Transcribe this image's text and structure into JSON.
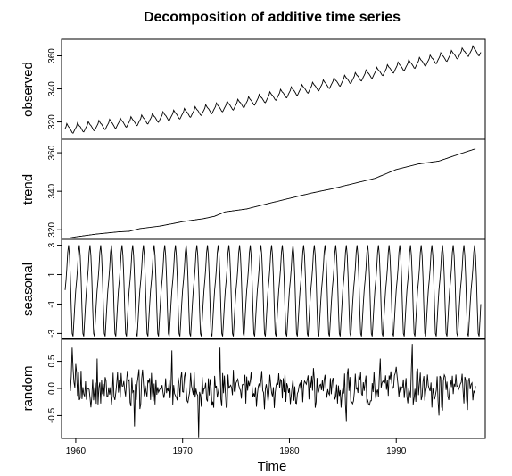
{
  "chart_data": {
    "type": "line",
    "title": "Decomposition of additive time series",
    "xlabel": "Time",
    "x_ticks": [
      "1960",
      "1970",
      "1980",
      "1990"
    ],
    "x_tick_values": [
      1960,
      1970,
      1980,
      1990
    ],
    "xlim": [
      1958.67,
      1998.33
    ],
    "grid": false,
    "panels": [
      {
        "name": "observed",
        "ylabel": "observed",
        "ylim": [
          309.5,
          370.0
        ],
        "y_ticks": [
          "320",
          "340",
          "360"
        ],
        "y_tick_values": [
          320,
          340,
          360
        ],
        "series": [
          {
            "x": [
              1959.5,
              1959.58,
              1959.67,
              1959.75,
              1959.83,
              1959.92,
              1960.0
            ],
            "values": [
              316.0,
              317.5,
              316.2,
              314.0,
              312.6,
              313.5,
              315.0
            ]
          },
          {
            "x": [
              1965.0,
              1965.37,
              1965.67,
              1965.83,
              1966.0
            ],
            "values": [
              320.0,
              322.2,
              319.0,
              316.9,
              319.5
            ]
          },
          {
            "x": [
              1970.0,
              1970.37,
              1970.67,
              1970.83,
              1971.0
            ],
            "values": [
              325.0,
              328.0,
              324.5,
              322.7,
              325.5
            ]
          },
          {
            "x": [
              1975.0,
              1975.37,
              1975.67,
              1975.83,
              1976.0
            ],
            "values": [
              330.5,
              334.0,
              330.0,
              328.0,
              331.0
            ]
          },
          {
            "x": [
              1980.0,
              1980.37,
              1980.67,
              1980.83,
              1981.0
            ],
            "values": [
              338.0,
              341.5,
              337.5,
              335.5,
              339.0
            ]
          },
          {
            "x": [
              1985.0,
              1985.37,
              1985.67,
              1985.83,
              1986.0
            ],
            "values": [
              345.0,
              348.5,
              344.5,
              342.5,
              346.0
            ]
          },
          {
            "x": [
              1990.0,
              1990.37,
              1990.67,
              1990.83,
              1991.0
            ],
            "values": [
              353.0,
              356.5,
              352.5,
              350.5,
              354.0
            ]
          },
          {
            "x": [
              1995.0,
              1995.37,
              1995.67,
              1995.83,
              1996.0
            ],
            "values": [
              360.0,
              363.7,
              359.5,
              357.5,
              361.0
            ]
          },
          {
            "x": [
              1997.0,
              1997.37,
              1997.67,
              1997.83,
              1997.92
            ],
            "values": [
              363.0,
              366.8,
              362.0,
              360.5,
              362.5
            ]
          }
        ]
      },
      {
        "name": "trend",
        "ylabel": "trend",
        "ylim": [
          315.0,
          367.0
        ],
        "y_ticks": [
          "320",
          "340",
          "360"
        ],
        "y_tick_values": [
          320,
          340,
          360
        ],
        "series": [
          {
            "x": [
              1959.5,
              1960,
              1962,
              1964,
              1965,
              1966,
              1968,
              1970,
              1972,
              1973,
              1974,
              1976,
              1978,
              1980,
              1982,
              1984,
              1986,
              1988,
              1990,
              1992,
              1994,
              1996,
              1997.5
            ],
            "values": [
              315.8,
              316.3,
              317.8,
              318.9,
              319.2,
              320.6,
              322.0,
              324.2,
              325.8,
              327.0,
              329.3,
              330.8,
              333.6,
              336.3,
              339.0,
              341.3,
              344.0,
              346.7,
              351.3,
              354.1,
              355.7,
              359.5,
              362.2
            ]
          }
        ]
      },
      {
        "name": "seasonal",
        "ylabel": "seasonal",
        "ylim": [
          -3.4,
          3.4
        ],
        "y_ticks": [
          "-3",
          "-1",
          "1",
          "3"
        ],
        "y_tick_values": [
          -3,
          -1,
          1,
          3
        ],
        "series": [
          {
            "x": [
              1959.0,
              1959.08,
              1959.17,
              1959.25,
              1959.33,
              1959.42,
              1959.5,
              1959.58,
              1959.67,
              1959.75,
              1959.83,
              1959.92
            ],
            "values": [
              -0.05,
              0.6,
              1.4,
              2.5,
              3.0,
              2.3,
              0.8,
              -1.3,
              -3.0,
              -3.2,
              -2.1,
              -1.0
            ]
          }
        ]
      },
      {
        "name": "random",
        "ylabel": "random",
        "ylim": [
          -0.92,
          0.92
        ],
        "y_ticks": [
          "-0.5",
          "0.0",
          "0.5"
        ],
        "y_tick_values": [
          -0.5,
          0.0,
          0.5
        ],
        "series": [
          {
            "x": [
              1959.5,
              1959.67,
              1960,
              1962,
              1965.5,
              1969,
              1971.5,
              1973.5,
              1975,
              1980,
              1985.3,
              1988.5,
              1991.5,
              1994,
              1997.5
            ],
            "values": [
              -0.05,
              0.75,
              0.45,
              0.55,
              -0.7,
              0.7,
              -0.9,
              0.75,
              0.1,
              0.0,
              -0.6,
              0.55,
              0.82,
              -0.5,
              0.4
            ]
          }
        ]
      }
    ]
  }
}
